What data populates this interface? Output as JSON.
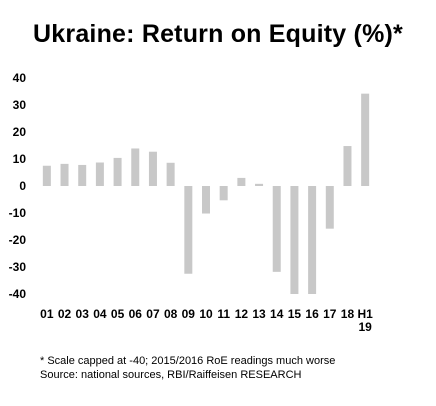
{
  "chart_data": {
    "type": "bar",
    "title": "Ukraine: Return on Equity (%)*",
    "categories": [
      "01",
      "02",
      "03",
      "04",
      "05",
      "06",
      "07",
      "08",
      "09",
      "10",
      "11",
      "12",
      "13",
      "14",
      "15",
      "16",
      "17",
      "18",
      "H1 19"
    ],
    "values": [
      7.5,
      8.2,
      7.8,
      8.7,
      10.4,
      13.9,
      12.7,
      8.6,
      -32.5,
      -10.2,
      -5.3,
      3.0,
      0.8,
      -31.8,
      -40,
      -40,
      -15.8,
      14.8,
      34.2
    ],
    "yticks": [
      40,
      30,
      20,
      10,
      0,
      -10,
      -20,
      -30,
      -40
    ],
    "ylim": [
      -40,
      40
    ],
    "bar_color": "#c8c8c8",
    "grid": false,
    "legend": "none"
  },
  "footnotes": {
    "note": "* Scale capped at -40; 2015/2016 RoE readings much worse",
    "source": "Source: national sources, RBI/Raiffeisen RESEARCH"
  }
}
